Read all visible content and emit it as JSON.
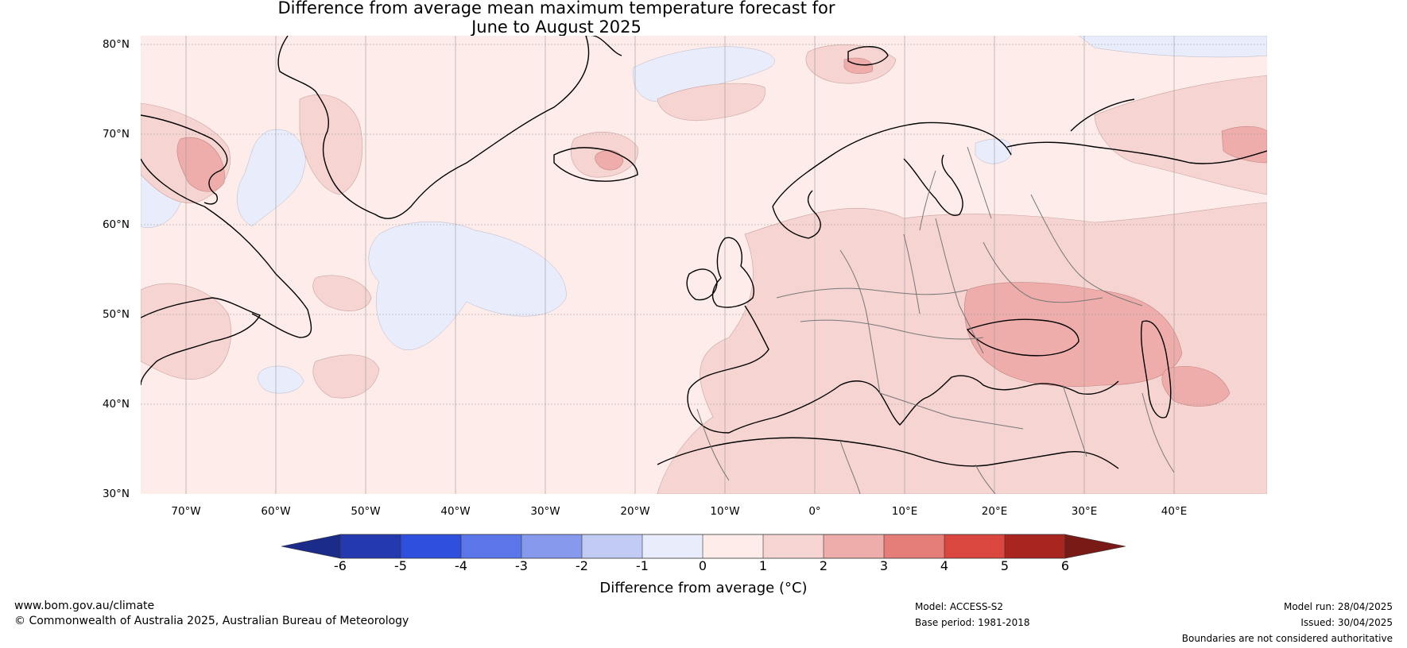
{
  "title_line1": "Difference from average mean maximum temperature forecast for",
  "title_line2": "June to August 2025",
  "map": {
    "lat_ticks": [
      "80°N",
      "70°N",
      "60°N",
      "50°N",
      "40°N",
      "30°N"
    ],
    "lon_ticks": [
      "70°W",
      "60°W",
      "50°W",
      "40°W",
      "30°W",
      "20°W",
      "10°W",
      "0°",
      "10°E",
      "20°E",
      "30°E",
      "40°E"
    ]
  },
  "colorbar": {
    "label": "Difference from average (°C)",
    "ticks": [
      "-6",
      "-5",
      "-4",
      "-3",
      "-2",
      "-1",
      "0",
      "1",
      "2",
      "3",
      "4",
      "5",
      "6"
    ],
    "colors": [
      "#1b2b8a",
      "#2439b0",
      "#2f4fdd",
      "#5b76e8",
      "#8699ec",
      "#c2cbf4",
      "#e9ecfb",
      "#fdecea",
      "#f6d4d2",
      "#eeadaa",
      "#e57e78",
      "#d9473e",
      "#a9251f",
      "#7a1a17"
    ],
    "levels": [
      -6,
      -5,
      -4,
      -3,
      -2,
      -1,
      0,
      1,
      2,
      3,
      4,
      5,
      6
    ]
  },
  "footer": {
    "website": "www.bom.gov.au/climate",
    "copyright": "© Commonwealth of Australia 2025, Australian Bureau of Meteorology",
    "model": "Model: ACCESS-S2",
    "base_period": "Base period: 1981-2018",
    "model_run": "Model run: 28/04/2025",
    "issued": "Issued: 30/04/2025",
    "disclaimer": "Boundaries are not considered authoritative"
  }
}
